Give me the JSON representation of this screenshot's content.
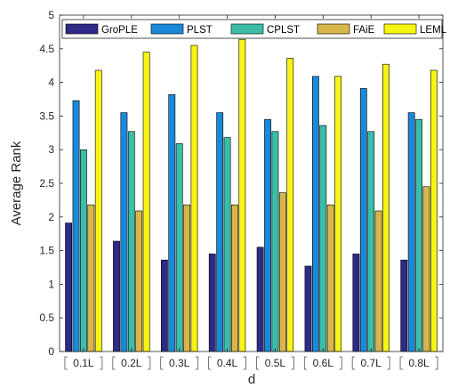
{
  "chart_data": {
    "type": "bar",
    "categories": [
      "0.1L",
      "0.2L",
      "0.3L",
      "0.4L",
      "0.5L",
      "0.6L",
      "0.7L",
      "0.8L"
    ],
    "series": [
      {
        "name": "GroPLE",
        "color": "#2e2a86",
        "values": [
          1.91,
          1.64,
          1.36,
          1.45,
          1.55,
          1.27,
          1.45,
          1.36
        ]
      },
      {
        "name": "PLST",
        "color": "#1a8ad8",
        "values": [
          3.73,
          3.55,
          3.82,
          3.55,
          3.45,
          4.09,
          3.91,
          3.55
        ]
      },
      {
        "name": "CPLST",
        "color": "#3bbda8",
        "values": [
          3.0,
          3.27,
          3.09,
          3.18,
          3.27,
          3.36,
          3.27,
          3.45
        ]
      },
      {
        "name": "FAiE",
        "color": "#d9b64a",
        "values": [
          2.18,
          2.09,
          2.18,
          2.18,
          2.36,
          2.18,
          2.09,
          2.45
        ]
      },
      {
        "name": "LEML",
        "color": "#f6f411",
        "values": [
          4.18,
          4.45,
          4.55,
          4.64,
          4.36,
          4.09,
          4.27,
          4.18
        ]
      }
    ],
    "xlabel": "d",
    "ylabel": "Average Rank",
    "ylim": [
      0,
      5
    ],
    "yticks": [
      "0",
      "0.5",
      "1",
      "1.5",
      "2",
      "2.5",
      "3",
      "3.5",
      "4",
      "4.5",
      "5"
    ],
    "legend_position": "top",
    "legend_orientation": "horizontal",
    "grid": false
  }
}
